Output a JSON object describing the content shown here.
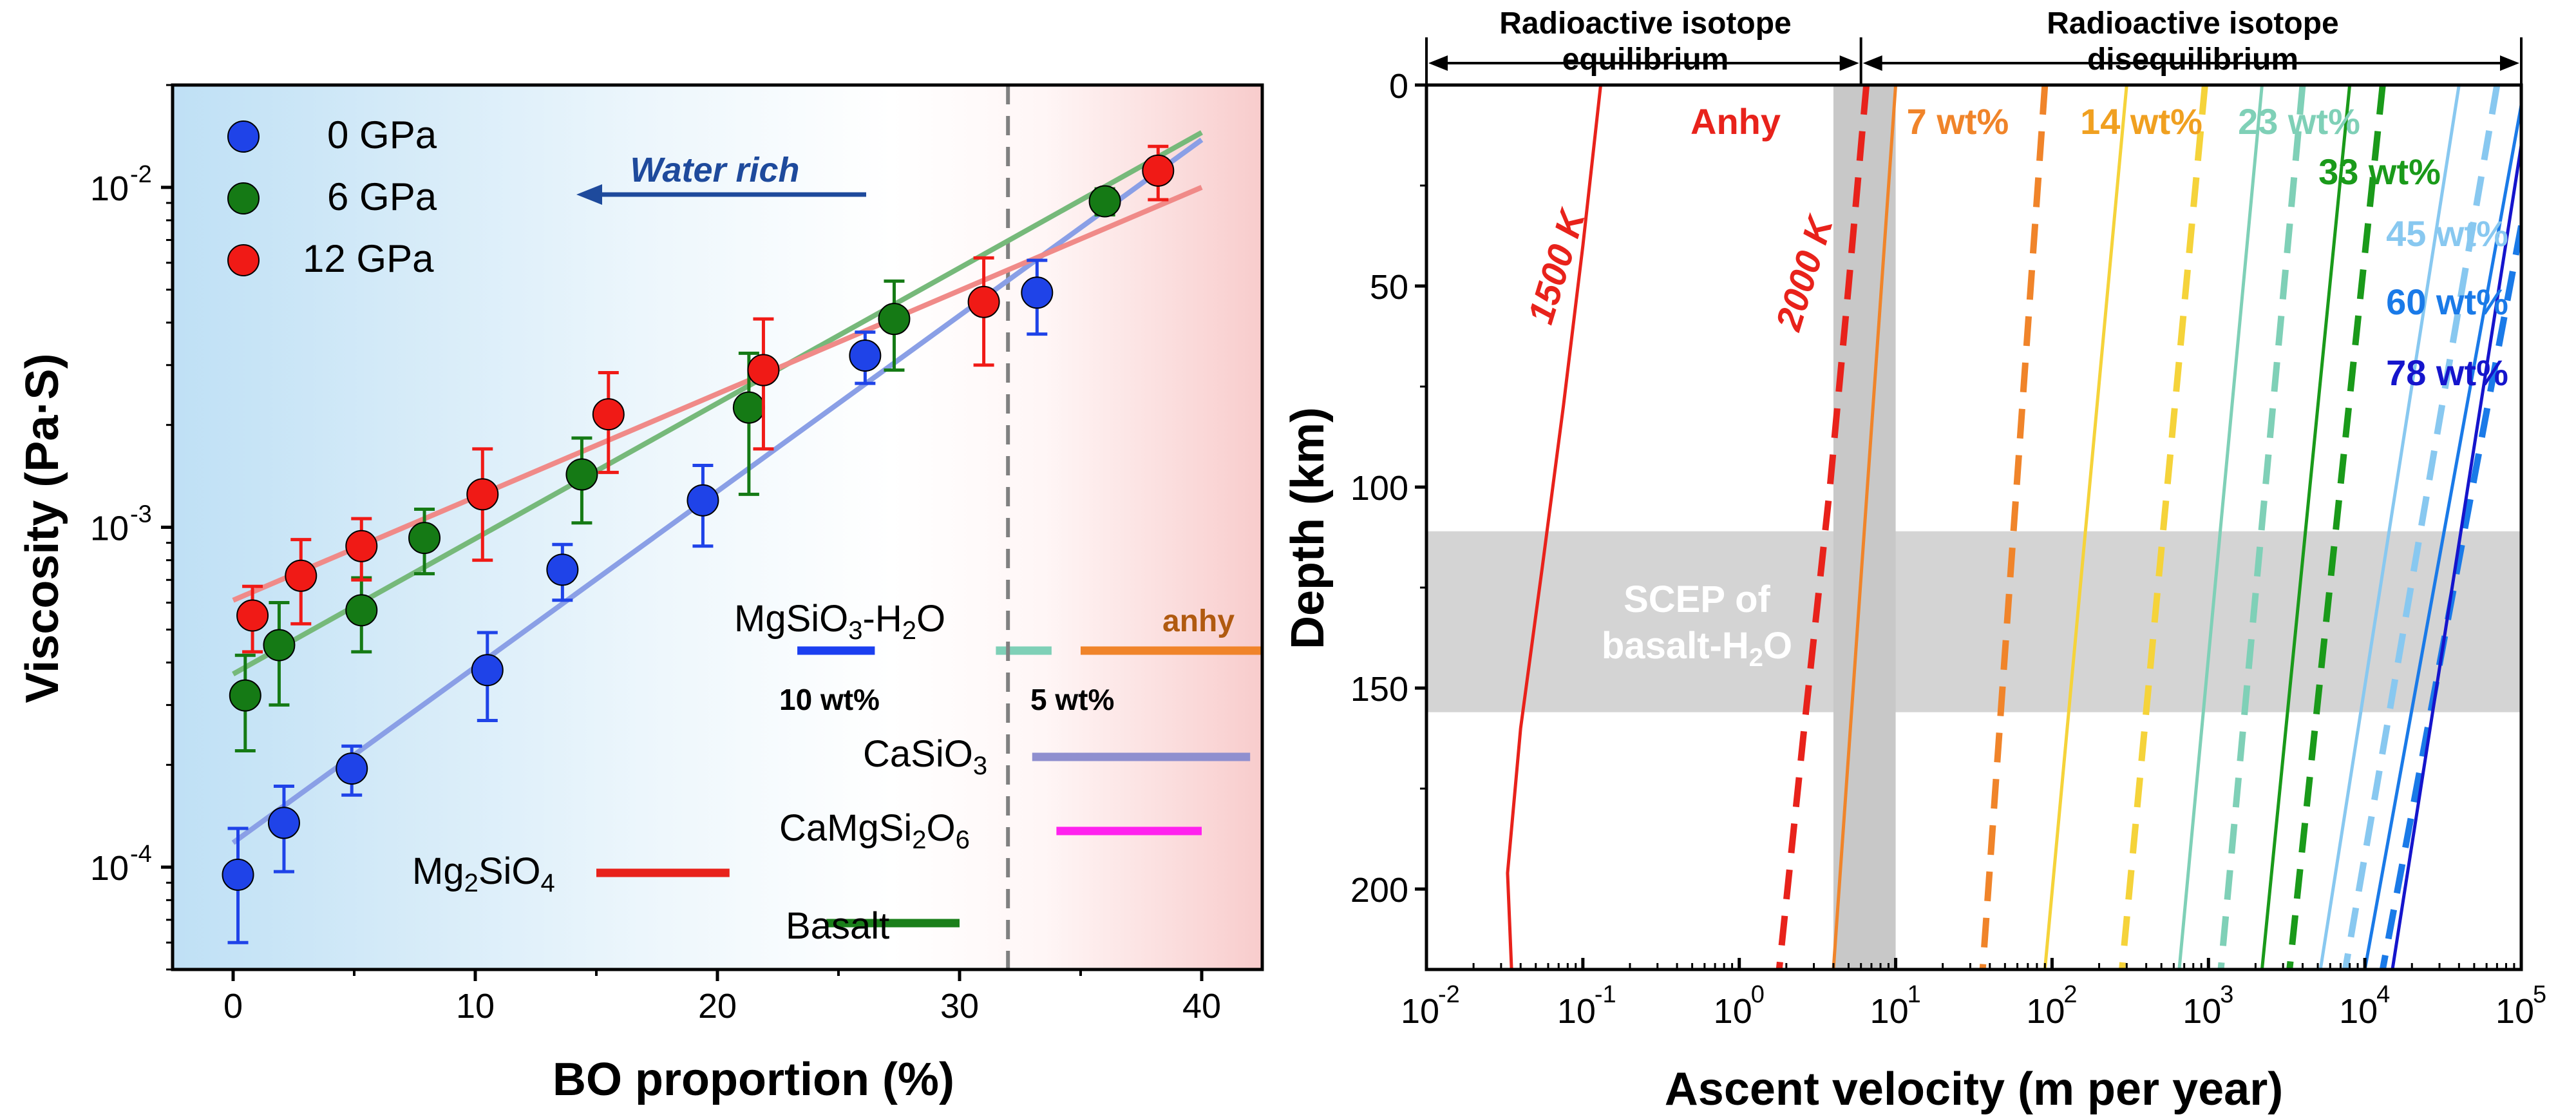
{
  "chart_data": [
    {
      "type": "scatter",
      "yscale": "log",
      "xlabel": "BO proportion (%)",
      "ylabel": "Viscosity (Pa·S)",
      "xlim": [
        -2.5,
        42.5
      ],
      "ylim": [
        5e-05,
        0.02
      ],
      "xticks": [
        0,
        10,
        20,
        30,
        40
      ],
      "xtick_labels": [
        "0",
        "10",
        "20",
        "30",
        "40"
      ],
      "yticks": [
        0.0001,
        0.001,
        0.01
      ],
      "ytick_labels": [
        "10",
        "10",
        "10"
      ],
      "ytick_exponents": [
        "-4",
        "-3",
        "-2"
      ],
      "vline_x": 32,
      "arrow_label": "Water rich",
      "series": [
        {
          "name": "0 GPa",
          "legend_label": "0 GPa",
          "color": "#1f43e8",
          "fit_color": "#8a9fe6",
          "x": [
            0.2,
            2.1,
            4.9,
            10.5,
            13.6,
            19.4,
            26.1,
            33.2
          ],
          "y": [
            9.5e-05,
            0.000135,
            0.000195,
            0.00038,
            0.00075,
            0.0012,
            0.0032,
            0.0049
          ],
          "err": [
            3.5e-05,
            3.8e-05,
            3.2e-05,
            0.00011,
            0.00014,
            0.00032,
            0.00055,
            0.0012
          ],
          "fit": [
            [
              0,
              0.000118
            ],
            [
              40,
              0.0138
            ]
          ]
        },
        {
          "name": "6 GPa",
          "legend_label": "6 GPa",
          "color": "#157a15",
          "fit_color": "#76b97a",
          "x": [
            0.5,
            1.9,
            5.3,
            7.9,
            14.4,
            21.3,
            27.3,
            36.0
          ],
          "y": [
            0.00032,
            0.00045,
            0.00057,
            0.00093,
            0.00143,
            0.00225,
            0.0041,
            0.0091
          ],
          "err": [
            0.0001,
            0.00015,
            0.00014,
            0.0002,
            0.0004,
            0.001,
            0.0012,
            0.0008
          ],
          "fit": [
            [
              0,
              0.00037
            ],
            [
              40,
              0.0145
            ]
          ]
        },
        {
          "name": "12 GPa",
          "legend_label": "12 GPa",
          "color": "#f01a16",
          "fit_color": "#f08a88",
          "x": [
            0.8,
            2.8,
            5.3,
            10.3,
            15.5,
            21.9,
            31.0,
            38.2
          ],
          "y": [
            0.00055,
            0.00072,
            0.00088,
            0.00125,
            0.00215,
            0.0029,
            0.0046,
            0.0112
          ],
          "err": [
            0.00012,
            0.0002,
            0.00018,
            0.00045,
            0.0007,
            0.0012,
            0.0016,
            0.002
          ],
          "fit": [
            [
              0,
              0.00061
            ],
            [
              40,
              0.01
            ]
          ]
        }
      ],
      "reference_lines": [
        {
          "label": "MgSiO3-H2O",
          "sublabel": "10 wt%",
          "color": "#1b3ff0",
          "x": [
            23.3,
            26.5
          ],
          "y": 0.00045
        },
        {
          "label": "MgSiO3-H2O",
          "sublabel": "5 wt%",
          "color": "#7fd0b7",
          "x": [
            31.5,
            33.8
          ],
          "y": 0.00045
        },
        {
          "label": "anhy",
          "color": "#f0842a",
          "x": [
            35.0,
            42.5
          ],
          "y": 0.00045
        },
        {
          "label": "CaSiO3",
          "color": "#8f8fcf",
          "x": [
            33.0,
            42.0
          ],
          "y": 0.00022
        },
        {
          "label": "CaMgSi2O6",
          "color": "#ff22ee",
          "x": [
            34.0,
            40.0
          ],
          "y": 0.00013
        },
        {
          "label": "Mg2SiO4",
          "color": "#e8221b",
          "x": [
            15.0,
            20.5
          ],
          "y": 0.0001
        },
        {
          "label": "Basalt",
          "color": "#1a7f1a",
          "x": [
            24.5,
            30.0
          ],
          "y": 7.2e-05
        }
      ]
    },
    {
      "type": "line",
      "xscale": "log",
      "xlabel": "Ascent velocity (m per year)",
      "ylabel": "Depth (km)",
      "xlim": [
        0.01,
        100000
      ],
      "ylim": [
        220,
        0
      ],
      "xticks": [
        0.01,
        0.1,
        1,
        10,
        100,
        1000,
        10000,
        100000
      ],
      "xtick_labels": [
        "10",
        "10",
        "10",
        "10",
        "10",
        "10",
        "10",
        "10"
      ],
      "xtick_exponents": [
        "-2",
        "-1",
        "0",
        "1",
        "2",
        "3",
        "4",
        "5"
      ],
      "yticks": [
        0,
        50,
        100,
        150,
        200
      ],
      "ytick_labels": [
        "0",
        "50",
        "100",
        "150",
        "200"
      ],
      "equilibrium_label_1": "Radioactive isotope",
      "equilibrium_label_2": "equilibrium",
      "disequilibrium_label_1": "Radioactive isotope",
      "disequilibrium_label_2": "disequilibrium",
      "regime_boundary_x": 6,
      "scep_band": {
        "depth_from": 111,
        "depth_to": 156,
        "label_line_1": "SCEP of",
        "label_line_2": "basalt-H",
        "label_sub": "2",
        "label_end": "O"
      },
      "vertical_band": {
        "from": 4,
        "to": 10
      },
      "temperature_labels": [
        "1500 K",
        "2000 K"
      ],
      "series": [
        {
          "name": "1500 K solid",
          "label": "1500 K",
          "color": "#e8221b",
          "style": "solid",
          "points": [
            [
              0.13,
              0
            ],
            [
              0.1,
              40
            ],
            [
              0.075,
              80
            ],
            [
              0.055,
              120
            ],
            [
              0.04,
              160
            ],
            [
              0.033,
              196
            ],
            [
              0.035,
              220
            ]
          ]
        },
        {
          "name": "Anhy dashed",
          "label": "Anhy",
          "color": "#e8221b",
          "style": "dashed",
          "points": [
            [
              6.5,
              0
            ],
            [
              5,
              50
            ],
            [
              3.8,
              100
            ],
            [
              2.6,
              160
            ],
            [
              1.8,
              220
            ]
          ]
        },
        {
          "name": "7 wt% solid",
          "label": "7 wt%",
          "color": "#f0842a",
          "style": "solid",
          "points": [
            [
              10,
              0
            ],
            [
              4,
              220
            ]
          ]
        },
        {
          "name": "7 wt% dashed",
          "color": "#f0842a",
          "style": "dashed",
          "points": [
            [
              90,
              0
            ],
            [
              36,
              220
            ]
          ]
        },
        {
          "name": "14 wt% solid",
          "label": "14 wt%",
          "color": "#f5d33a",
          "style": "solid",
          "points": [
            [
              300,
              0
            ],
            [
              90,
              220
            ]
          ]
        },
        {
          "name": "14 wt% dashed",
          "color": "#f5d33a",
          "style": "dashed",
          "points": [
            [
              950,
              0
            ],
            [
              280,
              220
            ]
          ]
        },
        {
          "name": "23 wt% solid",
          "label": "23 wt%",
          "color": "#7fd0b7",
          "style": "solid",
          "points": [
            [
              2200,
              0
            ],
            [
              650,
              220
            ]
          ]
        },
        {
          "name": "23 wt% dashed",
          "color": "#7fd0b7",
          "style": "dashed",
          "points": [
            [
              4000,
              0
            ],
            [
              1200,
              220
            ]
          ]
        },
        {
          "name": "33 wt% solid",
          "label": "33 wt%",
          "color": "#1a9a1a",
          "style": "solid",
          "points": [
            [
              8000,
              0
            ],
            [
              2200,
              220
            ]
          ]
        },
        {
          "name": "33 wt% dashed",
          "color": "#1a9a1a",
          "style": "dashed",
          "points": [
            [
              13000,
              0
            ],
            [
              3300,
              220
            ]
          ]
        },
        {
          "name": "45 wt% solid",
          "label": "45 wt%",
          "color": "#88c8f0",
          "style": "solid",
          "points": [
            [
              40000,
              0
            ],
            [
              5200,
              220
            ]
          ]
        },
        {
          "name": "45 wt% dashed",
          "color": "#88c8f0",
          "style": "dashed",
          "points": [
            [
              70000,
              0
            ],
            [
              7500,
              220
            ]
          ]
        },
        {
          "name": "60 wt% solid",
          "label": "60 wt%",
          "color": "#1a7ae8",
          "style": "solid",
          "points": [
            [
              100000,
              5
            ],
            [
              10000,
              220
            ]
          ]
        },
        {
          "name": "60 wt% dashed",
          "color": "#1a7ae8",
          "style": "dashed",
          "points": [
            [
              100000,
              35
            ],
            [
              13000,
              220
            ]
          ]
        },
        {
          "name": "78 wt% solid",
          "label": "78 wt%",
          "color": "#1515cc",
          "style": "solid",
          "points": [
            [
              100000,
              15
            ],
            [
              15000,
              220
            ]
          ]
        }
      ],
      "labels": [
        "Anhy",
        "7 wt%",
        "14 wt%",
        "23 wt%",
        "33 wt%",
        "45 wt%",
        "60 wt%",
        "78 wt%"
      ]
    }
  ]
}
